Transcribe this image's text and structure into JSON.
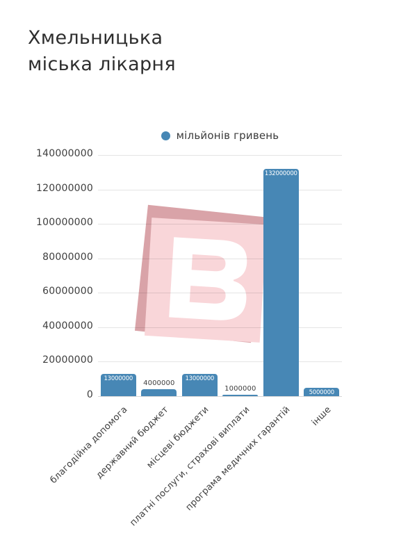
{
  "title": {
    "line1": "Хмельницька",
    "line2": "міська лікарня"
  },
  "legend": {
    "label": "мільйонів гривень"
  },
  "chart_data": {
    "type": "bar",
    "title": "Хмельницька міська лікарня",
    "legend_entries": [
      "мільйонів гривень"
    ],
    "legend_position": "top-center",
    "categories": [
      "благодійна допомога",
      "державний бюджет",
      "місцеві бюджети",
      "платні послуги, страхові виплати",
      "програма медичних гарантій",
      "інше"
    ],
    "values": [
      13000000,
      4000000,
      13000000,
      1000000,
      132000000,
      5000000
    ],
    "data_labels": [
      "13000000",
      "4000000",
      "13000000",
      "1000000",
      "132000000",
      "5000000"
    ],
    "label_placement": [
      "inside",
      "outside",
      "inside",
      "outside",
      "inside",
      "inside"
    ],
    "xlabel": "",
    "ylabel": "",
    "ylim": [
      0,
      140000000
    ],
    "yticks": [
      0,
      20000000,
      40000000,
      60000000,
      80000000,
      100000000,
      120000000,
      140000000
    ],
    "grid": true,
    "bar_color": "#4787b5"
  },
  "watermark": {
    "letter": "B",
    "back_color": "#d9a3a8",
    "front_color": "#f9d6d9",
    "letter_color": "#ffffff"
  },
  "colors": {
    "title_text": "#2e2e2e",
    "axis_text": "#3e3e3e",
    "outside_label_text": "#3d3d3d",
    "inside_label_text": "#ffffff"
  }
}
